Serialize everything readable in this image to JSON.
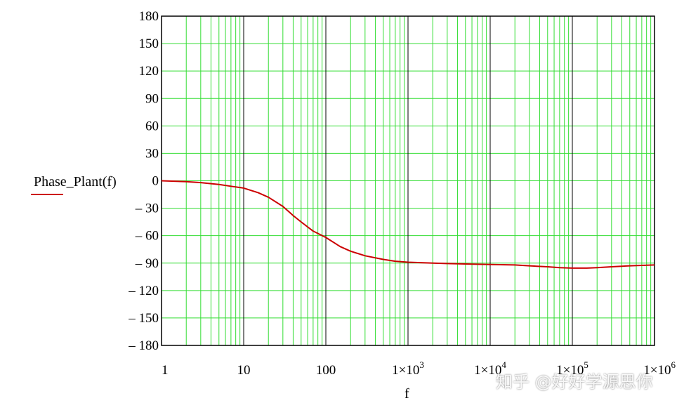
{
  "chart_data": {
    "type": "line",
    "title": "",
    "xlabel": "f",
    "legend_label": "Phase_Plant(f)",
    "xscale": "log",
    "xlim": [
      1,
      1000000
    ],
    "ylim": [
      -180,
      180
    ],
    "grid": true,
    "grid_minor_color": "#33dd33",
    "grid_major_color": "#000000",
    "line_color": "#cc0000",
    "y_ticks": [
      "180",
      "150",
      "120",
      "90",
      "60",
      "30",
      "0",
      "– 30",
      "– 60",
      "– 90",
      "– 120",
      "– 150",
      "– 180"
    ],
    "y_tick_values": [
      180,
      150,
      120,
      90,
      60,
      30,
      0,
      -30,
      -60,
      -90,
      -120,
      -150,
      -180
    ],
    "x_ticks": [
      {
        "value": 1,
        "base": "1",
        "exp": ""
      },
      {
        "value": 10,
        "base": "10",
        "exp": ""
      },
      {
        "value": 100,
        "base": "100",
        "exp": ""
      },
      {
        "value": 1000,
        "base": "1×10",
        "exp": "3"
      },
      {
        "value": 10000,
        "base": "1×10",
        "exp": "4"
      },
      {
        "value": 100000,
        "base": "1×10",
        "exp": "5"
      },
      {
        "value": 1000000,
        "base": "1×10",
        "exp": "6"
      }
    ],
    "series": [
      {
        "x": [
          1,
          2,
          3,
          5,
          7,
          10,
          15,
          20,
          30,
          40,
          50,
          70,
          100,
          150,
          200,
          300,
          500,
          700,
          1000,
          2000,
          3000,
          5000,
          10000,
          20000,
          30000,
          50000,
          70000,
          100000,
          150000,
          200000,
          300000,
          500000,
          700000,
          1000000
        ],
        "y": [
          0,
          -1,
          -2,
          -4,
          -6,
          -8,
          -13,
          -18,
          -28,
          -38,
          -45,
          -55,
          -62,
          -72,
          -77,
          -82,
          -86,
          -88,
          -89,
          -90,
          -90.5,
          -91,
          -91.5,
          -92,
          -93,
          -94,
          -95,
          -95.5,
          -95.5,
          -95,
          -94,
          -93,
          -92.5,
          -92
        ]
      }
    ]
  },
  "watermark": "知乎 @好好学源思你"
}
